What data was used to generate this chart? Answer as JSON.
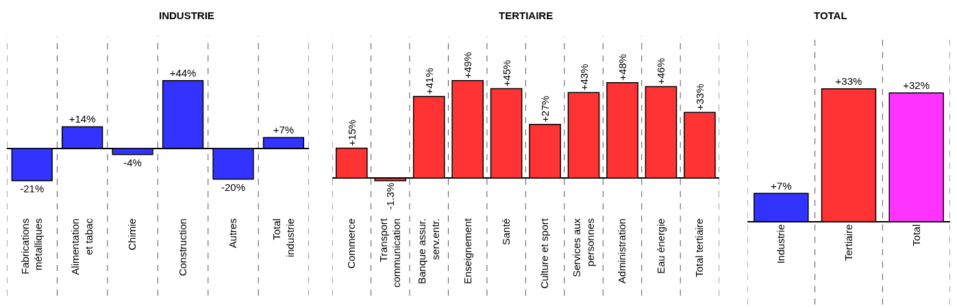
{
  "chart_data": [
    {
      "type": "bar",
      "title": "INDUSTRIE",
      "categories": [
        "Fabrications\nmétalliques",
        "Alimentation\net tabac",
        "Chimie",
        "Construction",
        "Autres",
        "Total\nindustrie"
      ],
      "values": [
        -21,
        14,
        -4,
        44,
        -20,
        7
      ],
      "value_labels": [
        "-21%",
        "+14%",
        "-4%",
        "+44%",
        "-20%",
        "+7%"
      ],
      "colors": [
        "#3333ff",
        "#3333ff",
        "#3333ff",
        "#3333ff",
        "#3333ff",
        "#3333ff"
      ],
      "grid": "x",
      "tick_labels": "x"
    },
    {
      "type": "bar",
      "title": "TERTIAIRE",
      "categories": [
        "Commerce",
        "Transport\ncommunication",
        "Banque assur.\nserv.entr.",
        "Enseignement",
        "Santé",
        "Culture et sport",
        "Services aux\npersonnes",
        "Administration",
        "Eau énergie",
        "Total tertiaire"
      ],
      "values": [
        15,
        -1.3,
        41,
        49,
        45,
        27,
        43,
        48,
        46,
        33
      ],
      "value_labels": [
        "+15%",
        "-1.3%",
        "+41%",
        "+49%",
        "+45%",
        "+27%",
        "+43%",
        "+48%",
        "+46%",
        "+33%"
      ],
      "colors": [
        "#ff3333",
        "#ff3333",
        "#ff3333",
        "#ff3333",
        "#ff3333",
        "#ff3333",
        "#ff3333",
        "#ff3333",
        "#ff3333",
        "#ff3333"
      ],
      "grid": "x",
      "tick_labels": "x"
    },
    {
      "type": "bar",
      "title": "TOTAL",
      "categories": [
        "Industrie",
        "Tertiaire",
        "Total"
      ],
      "values": [
        7,
        33,
        32
      ],
      "value_labels": [
        "+7%",
        "+33%",
        "+32%"
      ],
      "colors": [
        "#3333ff",
        "#ff3333",
        "#ff33ff"
      ],
      "grid": "x",
      "tick_labels": "x"
    }
  ]
}
